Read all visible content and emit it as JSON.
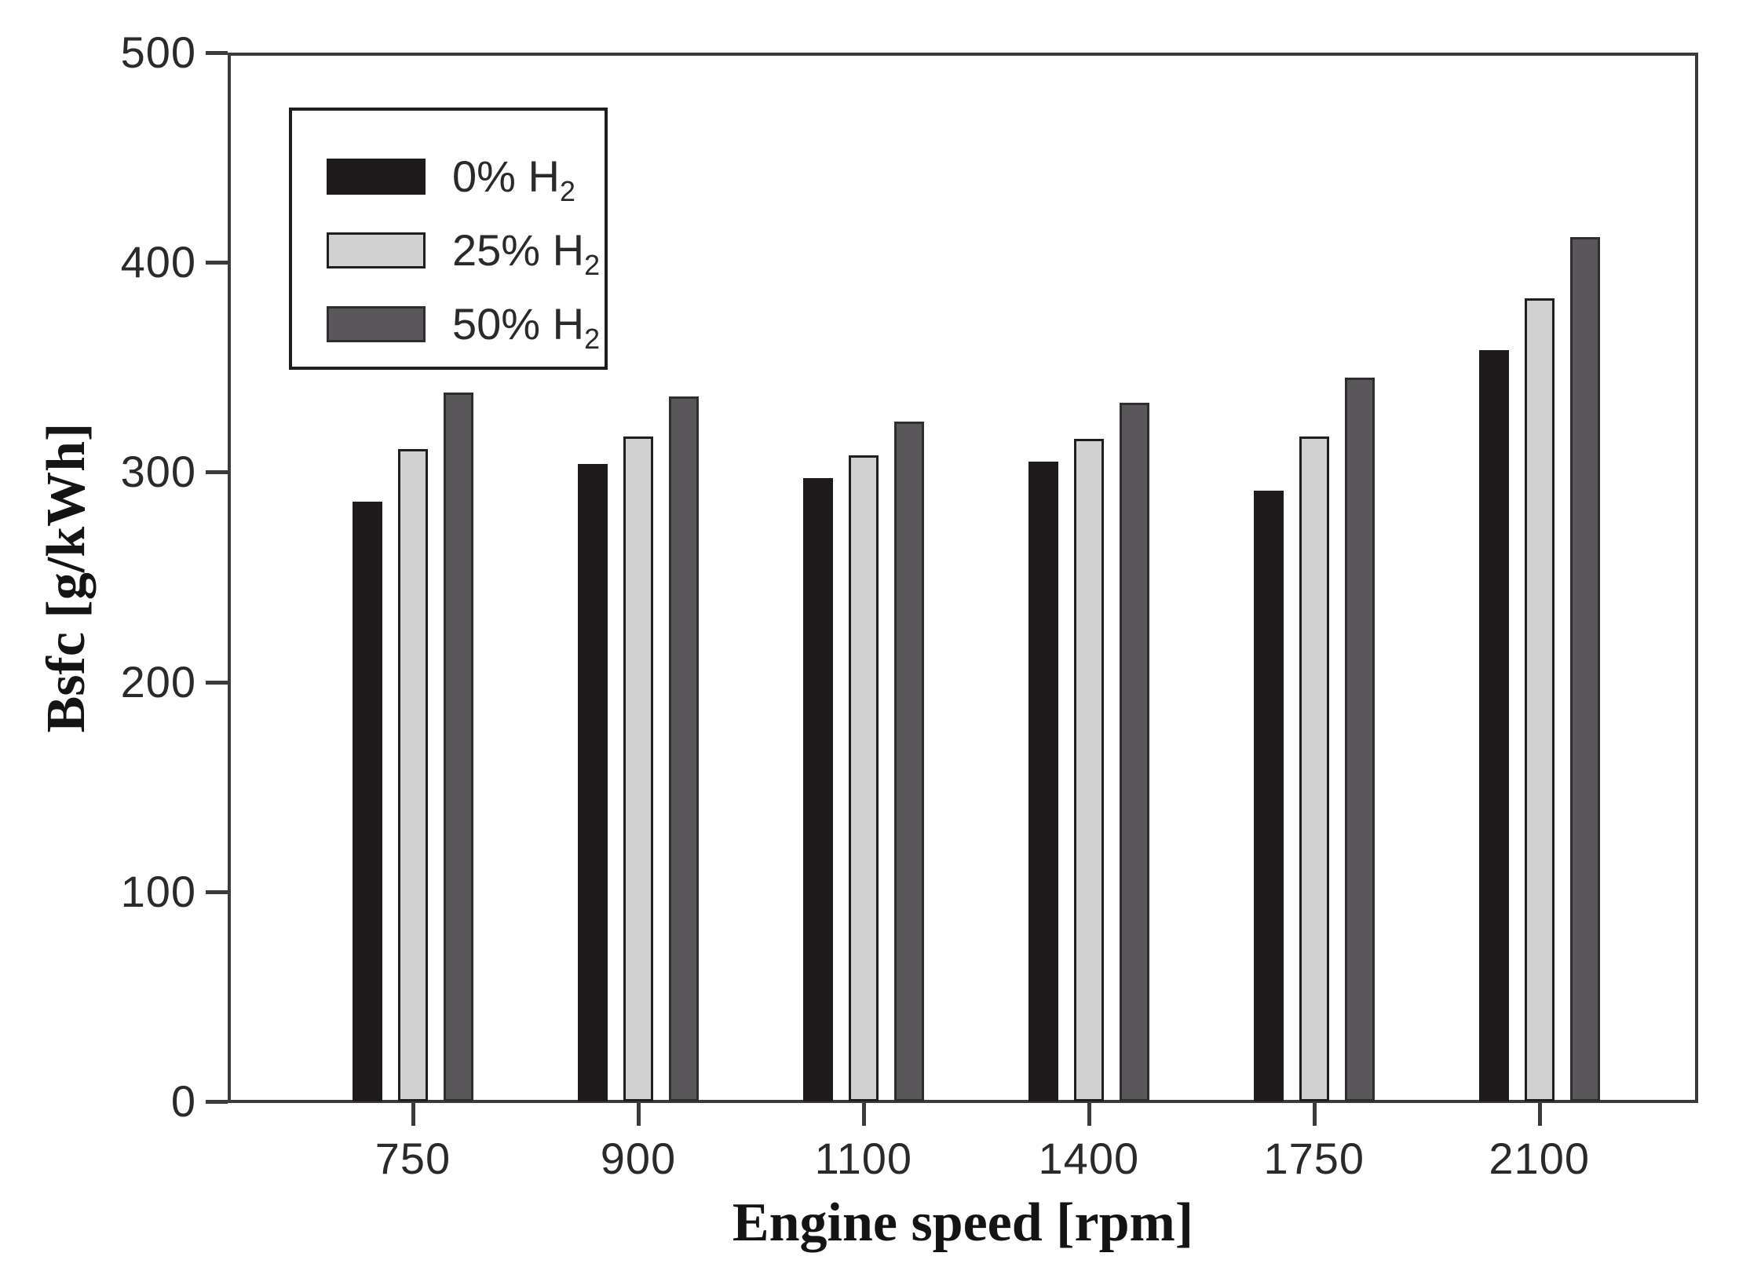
{
  "page": {
    "background": "#ffffff"
  },
  "chart_data": {
    "type": "bar",
    "title": "",
    "xlabel": "Engine speed [rpm]",
    "ylabel": "Bsfc [g/kWh]",
    "categories": [
      "750",
      "900",
      "1100",
      "1400",
      "1750",
      "2100"
    ],
    "series": [
      {
        "name": "0% H2",
        "label_main": "0% H",
        "label_sub": "2",
        "color": "#1f1b1d",
        "border_color": "#1f1b1d",
        "values": [
          286,
          304,
          297,
          305,
          291,
          358
        ]
      },
      {
        "name": "25% H2",
        "label_main": "25% H",
        "label_sub": "2",
        "color": "#d1d1d1",
        "border_color": "#1f1f1f",
        "values": [
          311,
          317,
          308,
          316,
          317,
          383
        ]
      },
      {
        "name": "50% H2",
        "label_main": "50% H",
        "label_sub": "2",
        "color": "#595759",
        "border_color": "#2f2d2f",
        "values": [
          338,
          336,
          324,
          333,
          345,
          412
        ]
      }
    ],
    "ylim": [
      0,
      500
    ],
    "yticks": [
      0,
      100,
      200,
      300,
      400,
      500
    ],
    "legend_position": "top-left",
    "grid": false,
    "axis_color": "#3b3b3b"
  }
}
